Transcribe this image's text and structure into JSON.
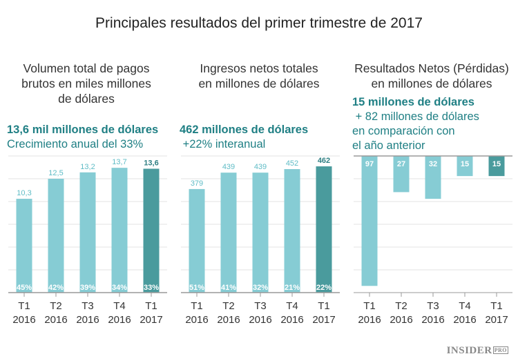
{
  "title": "Principales resultados del primer trimestre de 2017",
  "brand": {
    "name": "INSIDER",
    "suffix": "PRO"
  },
  "colors": {
    "bar": "#86ccd4",
    "bar_highlight": "#4a9b9d",
    "label": "#5fbcc6",
    "label_highlight": "#2f7f83",
    "headline": "#1f7f84"
  },
  "chart_data": [
    {
      "type": "bar",
      "title": [
        "Volumen total de pagos",
        "brutos en miles millones",
        "de dólares"
      ],
      "headline": "13,6 mil millones de dólares",
      "subheadline": [
        "Crecimiento anual del 33%"
      ],
      "categories": [
        [
          "T1",
          "2016"
        ],
        [
          "T2",
          "2016"
        ],
        [
          "T3",
          "2016"
        ],
        [
          "T4",
          "2016"
        ],
        [
          "T1",
          "2017"
        ]
      ],
      "values": [
        10.3,
        12.5,
        13.2,
        13.7,
        13.6
      ],
      "value_labels": [
        "10,3",
        "12,5",
        "13,2",
        "13,7",
        "13,6"
      ],
      "bottom_labels": [
        "45%",
        "42%",
        "39%",
        "34%",
        "33%"
      ],
      "highlight_index": 4,
      "ylim": [
        0,
        15
      ],
      "grid": true
    },
    {
      "type": "bar",
      "title": [
        "Ingresos netos totales",
        "en millones de dólares"
      ],
      "headline": "462 millones de dólares",
      "subheadline": [
        " +22% interanual"
      ],
      "categories": [
        [
          "T1",
          "2016"
        ],
        [
          "T2",
          "2016"
        ],
        [
          "T3",
          "2016"
        ],
        [
          "T4",
          "2016"
        ],
        [
          "T1",
          "2017"
        ]
      ],
      "values": [
        379,
        439,
        439,
        452,
        462
      ],
      "value_labels": [
        "379",
        "439",
        "439",
        "452",
        "462"
      ],
      "bottom_labels": [
        "51%",
        "41%",
        "32%",
        "21%",
        "22%"
      ],
      "highlight_index": 4,
      "ylim": [
        0,
        500
      ],
      "grid": true
    },
    {
      "type": "bar",
      "title": [
        "Resultados Netos (Pérdidas)",
        "en millones de dólares"
      ],
      "headline": "15 millones de dólares",
      "subheadline": [
        " + 82 millones de dólares",
        "en comparación con",
        "el año anterior"
      ],
      "categories": [
        [
          "T1",
          "2016"
        ],
        [
          "T2",
          "2016"
        ],
        [
          "T3",
          "2016"
        ],
        [
          "T4",
          "2016"
        ],
        [
          "T1",
          "2017"
        ]
      ],
      "values": [
        -97,
        -27,
        -32,
        -15,
        -15
      ],
      "value_labels": [
        "97",
        "27",
        "32",
        "15",
        "15"
      ],
      "bottom_labels": [],
      "highlight_index": 4,
      "ylim": [
        -102,
        0
      ],
      "grid": true
    }
  ]
}
